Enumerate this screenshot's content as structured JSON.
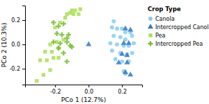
{
  "chart_data": {
    "type": "scatter",
    "xlabel": "PCo 1 (12.7%)",
    "ylabel": "PCo 2 (10.3%)",
    "xlim": [
      -0.38,
      0.32
    ],
    "ylim": [
      -0.33,
      0.32
    ],
    "xticks": [
      -0.2,
      {
        "value": 0.0,
        "label": "0.0"
      },
      0.2
    ],
    "yticks": [
      -0.2,
      {
        "value": 0.0,
        "label": "0.0"
      },
      0.2
    ],
    "grid": false,
    "legend": "upper right",
    "legend_title": "Crop Type",
    "series": [
      {
        "name": "Canola",
        "color": "#88ccee",
        "marker": "circle",
        "x": [
          0.27,
          0.15,
          0.14,
          0.17,
          0.2,
          0.22,
          0.25,
          0.15,
          0.19,
          0.22,
          0.26,
          0.13,
          0.17,
          0.21,
          0.24,
          0.14,
          0.19,
          0.23,
          0.26,
          0.16,
          0.2,
          0.24,
          0.21,
          0.22
        ],
        "y": [
          0.01,
          0.19,
          0.14,
          0.13,
          0.13,
          0.1,
          0.1,
          0.07,
          0.06,
          0.04,
          0.07,
          0.01,
          0.0,
          -0.01,
          -0.01,
          -0.05,
          -0.07,
          -0.08,
          -0.07,
          -0.12,
          -0.14,
          -0.14,
          -0.22,
          -0.24
        ]
      },
      {
        "name": "Intercropped Canola",
        "color": "#3377bb",
        "marker": "triangle",
        "x": [
          0.22,
          0.25,
          0.21,
          0.24,
          0.0,
          0.2,
          0.23,
          0.18,
          0.23,
          0.22,
          0.25
        ],
        "y": [
          0.13,
          0.12,
          0.01,
          0.01,
          0.0,
          -0.08,
          -0.09,
          -0.15,
          -0.15,
          -0.23,
          -0.25
        ]
      },
      {
        "name": "Pea",
        "color": "#aadd55",
        "marker": "square",
        "x": [
          -0.31,
          -0.27,
          -0.23,
          -0.29,
          -0.25,
          -0.21,
          -0.18,
          -0.26,
          -0.22,
          -0.18,
          -0.23,
          -0.19,
          -0.15,
          -0.2,
          -0.17,
          -0.14,
          -0.11,
          -0.08,
          -0.05,
          -0.09,
          -0.06,
          -0.13,
          -0.1
        ],
        "y": [
          -0.3,
          -0.25,
          -0.21,
          -0.13,
          -0.13,
          -0.11,
          -0.11,
          -0.06,
          -0.06,
          -0.03,
          0.0,
          0.02,
          0.04,
          0.14,
          0.18,
          0.22,
          0.26,
          0.28,
          0.29,
          0.25,
          0.25,
          0.25,
          0.28
        ]
      },
      {
        "name": "Intercropped Pea",
        "color": "#77bb33",
        "marker": "plus",
        "x": [
          -0.21,
          -0.18,
          -0.15,
          -0.19,
          -0.16,
          -0.12,
          -0.21,
          -0.17,
          -0.13,
          -0.1,
          -0.15,
          -0.18,
          -0.13,
          -0.11,
          -0.13
        ],
        "y": [
          0.18,
          0.15,
          0.17,
          0.09,
          0.08,
          0.08,
          0.02,
          0.01,
          0.02,
          -0.02,
          -0.07,
          -0.03,
          -0.14,
          -0.01,
          0.05
        ]
      }
    ]
  }
}
